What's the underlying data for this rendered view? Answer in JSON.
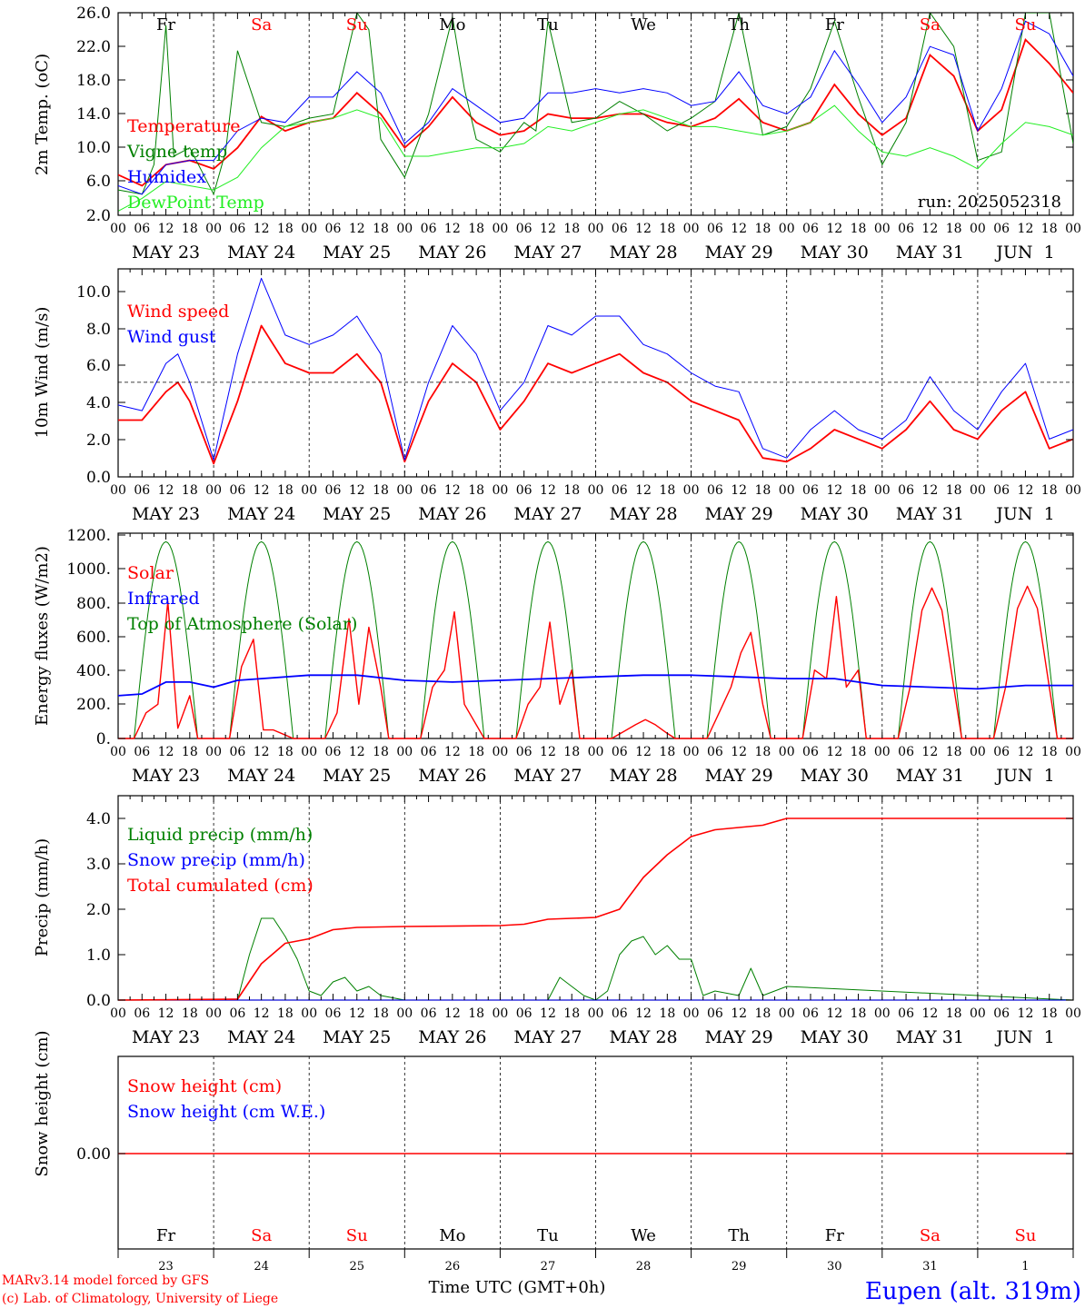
{
  "run_label": "run: 2025052318",
  "footer": {
    "credit_line1": "MARv3.14 model forced by GFS",
    "credit_line2": "(c) Lab. of Climatology, University of Liege",
    "xaxis_label": "Time UTC (GMT+0h)",
    "station": "Eupen (alt. 319m)"
  },
  "colors": {
    "red": "#ff0000",
    "green": "#008000",
    "blue": "#0000ff",
    "lightgreen": "#22ee22",
    "black": "#000000"
  },
  "days": {
    "abbr": [
      "Fr",
      "Sa",
      "Su",
      "Mo",
      "Tu",
      "We",
      "Th",
      "Fr",
      "Sa",
      "Su"
    ],
    "weekend": [
      false,
      true,
      true,
      false,
      false,
      false,
      false,
      false,
      true,
      true
    ],
    "date_labels": [
      "MAY 23",
      "MAY 24",
      "MAY 25",
      "MAY 26",
      "MAY 27",
      "MAY 28",
      "MAY 29",
      "MAY 30",
      "MAY 31",
      "JUN  1"
    ],
    "day_numbers": [
      "23",
      "24",
      "25",
      "26",
      "27",
      "28",
      "29",
      "30",
      "31",
      "1"
    ],
    "hour_ticks": [
      "00",
      "06",
      "12",
      "18"
    ],
    "final_tick": "00"
  },
  "chart_data": [
    {
      "type": "line",
      "ylabel": "2m Temp. (oC)",
      "ylim": [
        2.0,
        26.0
      ],
      "yticks": [
        "2.0",
        "6.0",
        "10.0",
        "14.0",
        "18.0",
        "22.0",
        "26.0"
      ],
      "x_unit": "hours since MAY 23 00 UTC",
      "series": [
        {
          "name": "Temperature",
          "color": "#ff0000",
          "x": [
            0,
            6,
            12,
            18,
            24,
            30,
            36,
            42,
            48,
            54,
            60,
            66,
            72,
            78,
            84,
            90,
            96,
            102,
            108,
            114,
            120,
            126,
            132,
            138,
            144,
            150,
            156,
            162,
            168,
            174,
            180,
            186,
            192,
            198,
            204,
            210,
            216,
            222,
            228,
            234,
            240
          ],
          "values": [
            6.8,
            5.5,
            8.0,
            8.5,
            7.5,
            10.0,
            13.7,
            12.0,
            13.0,
            13.5,
            16.5,
            14.0,
            10.0,
            12.5,
            16.0,
            13.0,
            11.5,
            12.0,
            14.0,
            13.5,
            13.5,
            14.0,
            14.0,
            13.0,
            12.5,
            13.5,
            15.8,
            13.0,
            12.0,
            13.0,
            17.5,
            14.0,
            11.5,
            13.5,
            21.0,
            18.5,
            12.0,
            14.5,
            22.8,
            20.0,
            16.5
          ]
        },
        {
          "name": "Vigne temp",
          "color": "#008000",
          "x": [
            0,
            6,
            9,
            12,
            14,
            18,
            24,
            27,
            30,
            36,
            42,
            48,
            54,
            60,
            63,
            66,
            72,
            78,
            84,
            87,
            90,
            96,
            102,
            105,
            108,
            114,
            120,
            126,
            132,
            138,
            144,
            150,
            156,
            159,
            162,
            168,
            174,
            180,
            186,
            192,
            198,
            204,
            210,
            216,
            222,
            228,
            234,
            240
          ],
          "values": [
            5.0,
            4.5,
            8.0,
            24.5,
            9.0,
            10.0,
            4.5,
            9.5,
            21.5,
            13.0,
            12.5,
            13.5,
            14.0,
            26.0,
            24.0,
            11.0,
            6.5,
            14.0,
            25.5,
            17.0,
            11.0,
            9.5,
            13.0,
            12.0,
            25.0,
            13.0,
            13.5,
            15.5,
            14.0,
            12.0,
            13.5,
            15.5,
            26.0,
            19.0,
            11.5,
            12.5,
            17.0,
            25.0,
            16.0,
            8.0,
            13.0,
            26.0,
            22.0,
            8.5,
            9.5,
            26.0,
            26.0,
            10.5
          ]
        },
        {
          "name": "Humidex",
          "color": "#0000ff",
          "x": [
            0,
            6,
            12,
            18,
            24,
            30,
            36,
            42,
            48,
            54,
            60,
            66,
            72,
            78,
            84,
            90,
            96,
            102,
            108,
            114,
            120,
            126,
            132,
            138,
            144,
            150,
            156,
            162,
            168,
            174,
            180,
            186,
            192,
            198,
            204,
            210,
            216,
            222,
            228,
            234,
            240
          ],
          "values": [
            5.5,
            4.5,
            8.0,
            8.5,
            8.5,
            12.0,
            13.5,
            13.0,
            16.0,
            16.0,
            19.0,
            16.5,
            10.5,
            13.0,
            17.0,
            15.0,
            13.0,
            13.5,
            16.5,
            16.5,
            17.0,
            16.5,
            17.0,
            16.5,
            15.0,
            15.5,
            19.0,
            15.0,
            14.0,
            16.0,
            21.5,
            17.5,
            13.0,
            16.0,
            22.0,
            21.0,
            12.0,
            17.0,
            25.0,
            23.5,
            18.5
          ]
        },
        {
          "name": "DewPoint Temp",
          "color": "#22ee22",
          "x": [
            0,
            6,
            12,
            18,
            24,
            30,
            36,
            42,
            48,
            54,
            60,
            66,
            72,
            78,
            84,
            90,
            96,
            102,
            108,
            114,
            120,
            126,
            132,
            138,
            144,
            150,
            156,
            162,
            168,
            174,
            180,
            186,
            192,
            198,
            204,
            210,
            216,
            222,
            228,
            234,
            240
          ],
          "values": [
            2.5,
            4.0,
            6.0,
            5.5,
            5.0,
            6.5,
            10.0,
            12.5,
            13.0,
            13.5,
            14.5,
            13.5,
            9.0,
            9.0,
            9.5,
            10.0,
            10.0,
            10.5,
            12.5,
            12.0,
            13.0,
            14.0,
            14.5,
            13.5,
            12.5,
            12.5,
            12.0,
            11.5,
            12.0,
            13.0,
            15.0,
            12.0,
            9.5,
            9.0,
            10.0,
            9.0,
            7.5,
            10.5,
            13.0,
            12.5,
            11.5
          ]
        }
      ]
    },
    {
      "type": "line",
      "ylabel": "10m Wind (m/s)",
      "ylim": [
        0.0,
        11.0
      ],
      "yticks": [
        "0.0",
        "2.0",
        "4.0",
        "6.0",
        "8.0",
        "10.0"
      ],
      "reference_line": 5.0,
      "x_unit": "hours since MAY 23 00 UTC",
      "series": [
        {
          "name": "Wind speed",
          "color": "#ff0000",
          "x": [
            0,
            6,
            12,
            15,
            18,
            24,
            30,
            36,
            42,
            48,
            54,
            60,
            66,
            72,
            78,
            84,
            90,
            96,
            102,
            108,
            114,
            120,
            126,
            132,
            138,
            144,
            150,
            156,
            162,
            168,
            174,
            180,
            186,
            192,
            198,
            204,
            210,
            216,
            222,
            228,
            234,
            240
          ],
          "values": [
            3.0,
            3.0,
            4.5,
            5.0,
            4.0,
            0.7,
            4.0,
            8.0,
            6.0,
            5.5,
            5.5,
            6.5,
            5.0,
            0.8,
            4.0,
            6.0,
            5.0,
            2.5,
            4.0,
            6.0,
            5.5,
            6.0,
            6.5,
            5.5,
            5.0,
            4.0,
            3.5,
            3.0,
            1.0,
            0.8,
            1.5,
            2.5,
            2.0,
            1.5,
            2.5,
            4.0,
            2.5,
            2.0,
            3.5,
            4.5,
            1.5,
            2.0
          ]
        },
        {
          "name": "Wind gust",
          "color": "#0000ff",
          "x": [
            0,
            6,
            12,
            15,
            18,
            24,
            30,
            36,
            42,
            48,
            54,
            60,
            66,
            72,
            78,
            84,
            90,
            96,
            102,
            108,
            114,
            120,
            126,
            132,
            138,
            144,
            150,
            156,
            162,
            168,
            174,
            180,
            186,
            192,
            198,
            204,
            210,
            216,
            222,
            228,
            234,
            240
          ],
          "values": [
            3.8,
            3.5,
            6.0,
            6.5,
            5.0,
            0.9,
            6.5,
            10.5,
            7.5,
            7.0,
            7.5,
            8.5,
            6.5,
            0.9,
            5.0,
            8.0,
            6.5,
            3.5,
            5.0,
            8.0,
            7.5,
            8.5,
            8.5,
            7.0,
            6.5,
            5.5,
            4.8,
            4.5,
            1.5,
            1.0,
            2.5,
            3.5,
            2.5,
            2.0,
            3.0,
            5.3,
            3.5,
            2.5,
            4.5,
            6.0,
            2.0,
            2.5
          ]
        }
      ]
    },
    {
      "type": "line",
      "ylabel": "Energy fluxes (W/m2)",
      "ylim": [
        0,
        1200
      ],
      "yticks": [
        "0.",
        "200.",
        "400.",
        "600.",
        "800.",
        "1000.",
        "1200."
      ],
      "x_unit": "hours since MAY 23 00 UTC",
      "series": [
        {
          "name": "Solar",
          "color": "#ff0000",
          "days": [
            {
              "peak": 800,
              "shape": [
                0,
                150,
                200,
                800,
                60,
                250,
                0
              ]
            },
            {
              "peak": 580,
              "shape": [
                0,
                420,
                580,
                50,
                50,
                20,
                0
              ]
            },
            {
              "peak": 700,
              "shape": [
                0,
                150,
                700,
                200,
                650,
                300,
                0
              ]
            },
            {
              "peak": 740,
              "shape": [
                0,
                300,
                400,
                740,
                200,
                80,
                0
              ]
            },
            {
              "peak": 680,
              "shape": [
                0,
                200,
                300,
                680,
                200,
                400,
                0
              ]
            },
            {
              "peak": 110,
              "shape": [
                0,
                40,
                80,
                110,
                80,
                30,
                0
              ]
            },
            {
              "peak": 620,
              "shape": [
                0,
                150,
                300,
                500,
                620,
                200,
                0
              ]
            },
            {
              "peak": 830,
              "shape": [
                0,
                400,
                350,
                830,
                300,
                400,
                0
              ]
            },
            {
              "peak": 880,
              "shape": [
                0,
                300,
                750,
                880,
                750,
                300,
                0
              ]
            },
            {
              "peak": 890,
              "shape": [
                0,
                300,
                760,
                890,
                760,
                300,
                0
              ]
            }
          ]
        },
        {
          "name": "Infrared",
          "color": "#0000ff",
          "x": [
            0,
            6,
            12,
            18,
            24,
            30,
            36,
            48,
            60,
            72,
            84,
            96,
            108,
            120,
            132,
            144,
            156,
            168,
            180,
            192,
            204,
            216,
            228,
            240
          ],
          "values": [
            250,
            260,
            330,
            330,
            300,
            340,
            350,
            370,
            370,
            340,
            330,
            340,
            350,
            360,
            370,
            370,
            360,
            350,
            350,
            310,
            300,
            290,
            310,
            310
          ]
        },
        {
          "name": "Top of Atmosphere (Solar)",
          "color": "#008000",
          "daily_peak": 1150,
          "sunrise_h": 4,
          "sunset_h": 20
        }
      ]
    },
    {
      "type": "line",
      "ylabel": "Precip (mm/h)",
      "ylim": [
        0.0,
        4.5
      ],
      "yticks": [
        "0.0",
        "1.0",
        "2.0",
        "3.0",
        "4.0"
      ],
      "x_unit": "hours since MAY 23 00 UTC",
      "series": [
        {
          "name": "Liquid precip (mm/h)",
          "color": "#008000",
          "x": [
            0,
            30,
            33,
            36,
            39,
            42,
            45,
            48,
            51,
            54,
            57,
            60,
            63,
            66,
            69,
            72,
            108,
            111,
            114,
            117,
            120,
            123,
            126,
            129,
            132,
            135,
            138,
            141,
            144,
            147,
            150,
            156,
            159,
            162,
            168,
            240
          ],
          "values": [
            0,
            0,
            1.0,
            1.8,
            1.8,
            1.4,
            0.9,
            0.2,
            0.1,
            0.4,
            0.5,
            0.2,
            0.3,
            0.1,
            0.05,
            0,
            0,
            0.5,
            0.3,
            0.1,
            0,
            0.2,
            1.0,
            1.3,
            1.4,
            1.0,
            1.2,
            0.9,
            0.9,
            0.1,
            0.2,
            0.1,
            0.7,
            0.1,
            0.3,
            0
          ]
        },
        {
          "name": "Snow precip (mm/h)",
          "color": "#0000ff",
          "x": [
            0,
            240
          ],
          "values": [
            0,
            0
          ]
        },
        {
          "name": "Total cumulated (cm)",
          "color": "#ff0000",
          "x": [
            0,
            30,
            36,
            42,
            48,
            54,
            60,
            72,
            96,
            102,
            108,
            114,
            120,
            126,
            132,
            138,
            144,
            150,
            156,
            162,
            168,
            240
          ],
          "values": [
            0,
            0.02,
            0.8,
            1.25,
            1.35,
            1.55,
            1.6,
            1.62,
            1.64,
            1.67,
            1.78,
            1.8,
            1.82,
            2.0,
            2.7,
            3.2,
            3.6,
            3.75,
            3.8,
            3.85,
            4.0,
            4.0
          ]
        }
      ]
    },
    {
      "type": "line",
      "ylabel": "Snow height (cm)",
      "yticks": [
        "0.00"
      ],
      "series": [
        {
          "name": "Snow height (cm)",
          "color": "#ff0000",
          "x": [
            0,
            240
          ],
          "values": [
            0,
            0
          ]
        },
        {
          "name": "Snow height (cm W.E.)",
          "color": "#0000ff",
          "x": [
            0,
            240
          ],
          "values": [
            0,
            0
          ]
        }
      ]
    }
  ]
}
